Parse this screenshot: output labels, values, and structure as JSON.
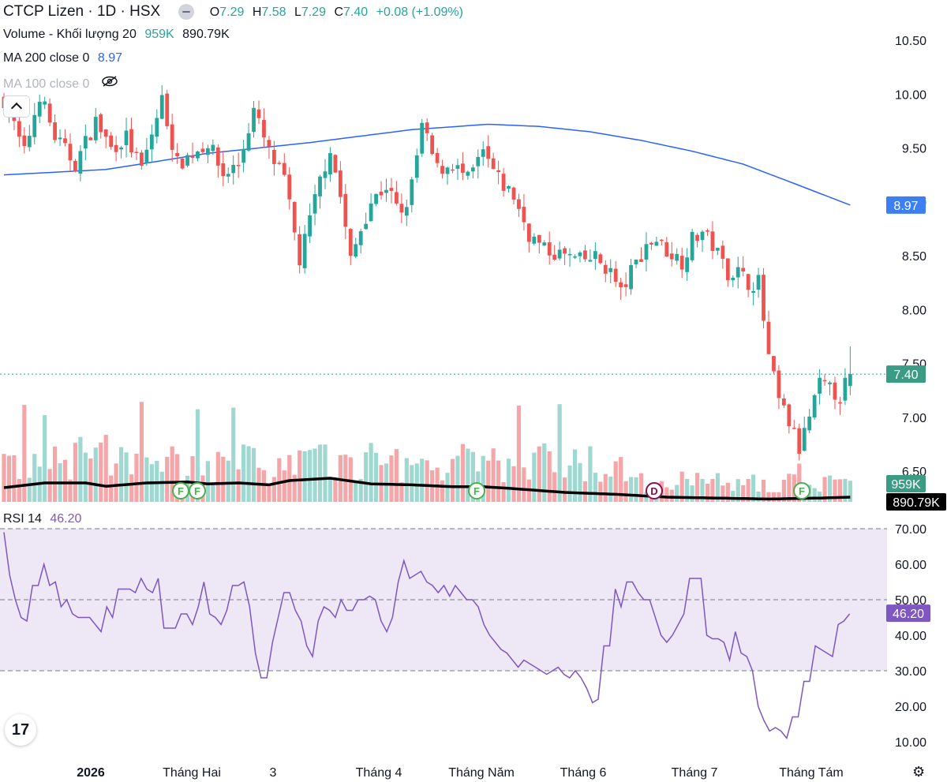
{
  "header": {
    "symbol": "CTCP Lizen · 1D · HSX",
    "open_label": "O",
    "open": "7.29",
    "high_label": "H",
    "high": "7.58",
    "low_label": "L",
    "low": "7.29",
    "close_label": "C",
    "close": "7.40",
    "change": "+0.08 (+1.09%)"
  },
  "indicators": {
    "volume_label": "Volume - Khối lượng 20",
    "volume_value": "959K",
    "volume_ma_value": "890.79K",
    "ma200_label": "MA 200 close 0",
    "ma200_value": "8.97",
    "ma100_label": "MA 100 close 0",
    "rsi_label": "RSI 14",
    "rsi_value": "46.20"
  },
  "colors": {
    "up": "#26a69a",
    "down": "#ef5350",
    "ma200": "#2962ff",
    "rsi": "#7e57c2",
    "rsi_band": "#ede7f6"
  },
  "chart_data": [
    {
      "type": "candlestick",
      "y_ticks": [
        "10.50",
        "10.00",
        "9.50",
        "9.00",
        "8.50",
        "8.00",
        "7.50",
        "7.00",
        "6.50"
      ],
      "ylim": [
        6.3,
        10.7
      ],
      "x_labels": [
        "2026",
        "Tháng Hai",
        "3",
        "Tháng 4",
        "Tháng Năm",
        "Tháng 6",
        "Tháng 7",
        "Tháng Tám"
      ],
      "last_price_label": "7.40",
      "ma200_label": "8.97",
      "volume_label": "959K",
      "volume_ma_label": "890.79K",
      "event_markers": [
        "F",
        "F",
        "F",
        "D",
        "F"
      ],
      "anchors": [
        [
          0,
          9.95
        ],
        [
          4,
          9.45
        ],
        [
          7,
          10.0
        ],
        [
          10,
          9.6
        ],
        [
          14,
          9.35
        ],
        [
          18,
          9.75
        ],
        [
          21,
          9.5
        ],
        [
          24,
          9.6
        ],
        [
          27,
          9.3
        ],
        [
          31,
          9.95
        ],
        [
          34,
          9.35
        ],
        [
          37,
          9.45
        ],
        [
          40,
          9.55
        ],
        [
          43,
          9.25
        ],
        [
          46,
          9.35
        ],
        [
          49,
          9.85
        ],
        [
          52,
          9.45
        ],
        [
          55,
          9.2
        ],
        [
          58,
          8.45
        ],
        [
          62,
          9.2
        ],
        [
          64,
          9.5
        ],
        [
          66,
          9.05
        ],
        [
          68,
          8.45
        ],
        [
          70,
          8.75
        ],
        [
          72,
          9.0
        ],
        [
          75,
          9.15
        ],
        [
          78,
          8.85
        ],
        [
          80,
          9.15
        ],
        [
          82,
          9.7
        ],
        [
          85,
          9.3
        ],
        [
          88,
          9.35
        ],
        [
          91,
          9.2
        ],
        [
          94,
          9.45
        ],
        [
          97,
          9.2
        ],
        [
          100,
          9.05
        ],
        [
          103,
          8.7
        ],
        [
          106,
          8.55
        ],
        [
          110,
          8.5
        ],
        [
          113,
          8.45
        ],
        [
          116,
          8.48
        ],
        [
          119,
          8.35
        ],
        [
          121,
          8.15
        ],
        [
          123,
          8.35
        ],
        [
          126,
          8.6
        ],
        [
          128,
          8.65
        ],
        [
          130,
          8.55
        ],
        [
          133,
          8.45
        ],
        [
          135,
          8.65
        ],
        [
          137,
          8.72
        ],
        [
          139,
          8.6
        ],
        [
          142,
          8.35
        ],
        [
          144,
          8.35
        ],
        [
          146,
          8.25
        ],
        [
          148,
          8.25
        ],
        [
          150,
          7.55
        ],
        [
          152,
          7.15
        ],
        [
          154,
          6.95
        ],
        [
          156,
          6.7
        ],
        [
          158,
          7.0
        ],
        [
          160,
          7.3
        ],
        [
          162,
          7.25
        ],
        [
          164,
          7.2
        ],
        [
          166,
          7.4
        ]
      ],
      "ma200_anchors": [
        [
          0,
          9.25
        ],
        [
          20,
          9.3
        ],
        [
          40,
          9.45
        ],
        [
          60,
          9.55
        ],
        [
          80,
          9.67
        ],
        [
          95,
          9.72
        ],
        [
          105,
          9.7
        ],
        [
          115,
          9.65
        ],
        [
          125,
          9.57
        ],
        [
          135,
          9.47
        ],
        [
          145,
          9.35
        ],
        [
          155,
          9.17
        ],
        [
          166,
          8.97
        ]
      ],
      "volume_ma_anchors": [
        [
          0,
          0.3
        ],
        [
          8,
          0.4
        ],
        [
          16,
          0.4
        ],
        [
          20,
          0.33
        ],
        [
          28,
          0.4
        ],
        [
          36,
          0.42
        ],
        [
          40,
          0.38
        ],
        [
          46,
          0.4
        ],
        [
          52,
          0.36
        ],
        [
          56,
          0.45
        ],
        [
          64,
          0.5
        ],
        [
          72,
          0.38
        ],
        [
          80,
          0.36
        ],
        [
          88,
          0.32
        ],
        [
          94,
          0.32
        ],
        [
          100,
          0.28
        ],
        [
          110,
          0.2
        ],
        [
          120,
          0.16
        ],
        [
          130,
          0.1
        ],
        [
          140,
          0.08
        ],
        [
          150,
          0.06
        ],
        [
          160,
          0.08
        ],
        [
          166,
          0.1
        ]
      ]
    },
    {
      "type": "line",
      "name": "RSI 14",
      "y_ticks": [
        "70.00",
        "60.00",
        "50.00",
        "40.00",
        "30.00",
        "20.00",
        "10.00"
      ],
      "ylim": [
        8,
        72
      ],
      "band": [
        30,
        70
      ],
      "last_value_label": "46.20",
      "values": [
        69,
        57,
        50,
        45,
        44,
        54,
        54,
        60,
        54,
        55,
        48,
        50,
        46,
        45,
        45,
        45,
        43,
        41,
        48,
        45,
        53,
        53,
        53,
        52,
        56,
        53,
        52,
        56,
        42,
        42,
        42,
        46,
        46,
        43,
        48,
        55,
        46,
        45,
        43,
        47,
        54,
        54,
        55,
        48,
        35,
        28,
        28,
        38,
        45,
        52,
        52,
        47,
        44,
        37,
        34,
        44,
        48,
        47,
        45,
        50,
        47,
        47,
        50,
        50,
        51,
        50,
        44,
        41,
        45,
        55,
        61,
        56,
        57,
        58,
        55,
        54,
        52,
        54,
        51,
        54,
        52,
        50,
        50,
        48,
        43,
        40,
        38,
        36,
        35,
        33,
        31,
        33,
        32,
        31,
        30,
        29,
        30,
        31,
        29,
        28,
        30,
        28,
        25,
        21,
        22,
        37,
        37,
        53,
        48,
        55,
        55,
        52,
        50,
        50,
        45,
        40,
        38,
        40,
        43,
        46,
        56,
        56,
        56,
        40,
        39,
        39,
        38,
        33,
        41,
        35,
        34,
        30,
        20,
        16,
        13,
        14,
        13,
        11,
        17,
        17,
        27,
        27,
        37,
        36,
        35,
        34,
        43,
        44,
        46
      ]
    }
  ]
}
